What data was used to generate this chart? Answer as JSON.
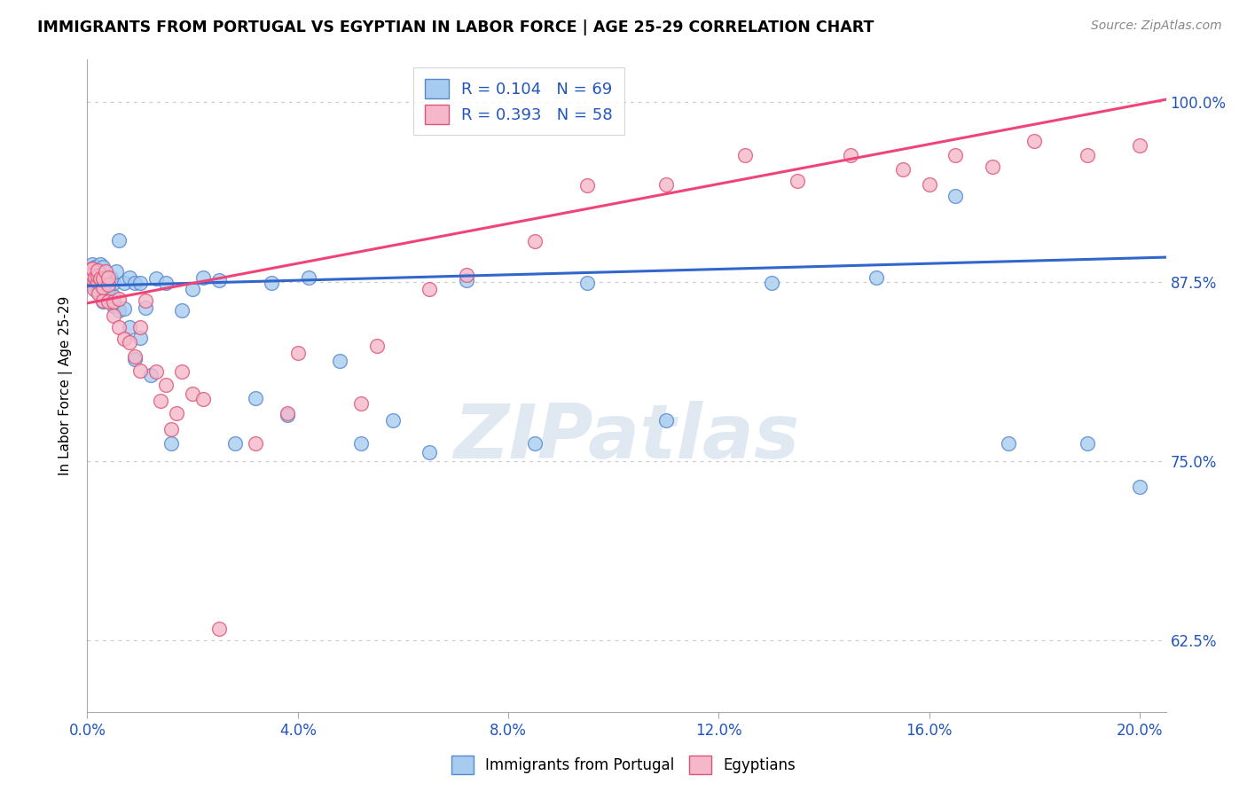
{
  "title": "IMMIGRANTS FROM PORTUGAL VS EGYPTIAN IN LABOR FORCE | AGE 25-29 CORRELATION CHART",
  "source": "Source: ZipAtlas.com",
  "ylabel": "In Labor Force | Age 25-29",
  "blue_R": 0.104,
  "blue_N": 69,
  "pink_R": 0.393,
  "pink_N": 58,
  "blue_color": "#A8CCF0",
  "pink_color": "#F5B8CA",
  "blue_edge": "#5588CC",
  "pink_edge": "#DD5577",
  "blue_line": "#3366CC",
  "pink_line": "#EE4477",
  "blue_label": "Immigrants from Portugal",
  "pink_label": "Egyptians",
  "xlim": [
    0.0,
    0.205
  ],
  "ylim": [
    0.575,
    1.03
  ],
  "xticks": [
    0.0,
    0.04,
    0.08,
    0.12,
    0.16,
    0.2
  ],
  "xticklabels": [
    "0.0%",
    "4.0%",
    "8.0%",
    "12.0%",
    "16.0%",
    "20.0%"
  ],
  "yticks": [
    0.625,
    0.75,
    0.875,
    1.0
  ],
  "yticklabels": [
    "62.5%",
    "75.0%",
    "87.5%",
    "100.0%"
  ],
  "blue_x": [
    0.0005,
    0.0005,
    0.0008,
    0.001,
    0.001,
    0.001,
    0.0012,
    0.0015,
    0.0015,
    0.002,
    0.002,
    0.002,
    0.002,
    0.0022,
    0.0025,
    0.003,
    0.003,
    0.003,
    0.003,
    0.003,
    0.0032,
    0.0035,
    0.004,
    0.004,
    0.004,
    0.0042,
    0.0045,
    0.005,
    0.005,
    0.005,
    0.0055,
    0.006,
    0.006,
    0.007,
    0.007,
    0.008,
    0.008,
    0.009,
    0.009,
    0.01,
    0.01,
    0.011,
    0.012,
    0.013,
    0.015,
    0.016,
    0.018,
    0.02,
    0.022,
    0.025,
    0.028,
    0.032,
    0.035,
    0.038,
    0.042,
    0.048,
    0.052,
    0.058,
    0.065,
    0.072,
    0.085,
    0.095,
    0.11,
    0.13,
    0.15,
    0.165,
    0.175,
    0.19,
    0.2
  ],
  "blue_y": [
    0.875,
    0.881,
    0.884,
    0.876,
    0.882,
    0.887,
    0.872,
    0.879,
    0.885,
    0.868,
    0.875,
    0.879,
    0.883,
    0.871,
    0.887,
    0.861,
    0.87,
    0.876,
    0.88,
    0.885,
    0.87,
    0.876,
    0.862,
    0.87,
    0.878,
    0.874,
    0.878,
    0.858,
    0.865,
    0.874,
    0.882,
    0.855,
    0.904,
    0.856,
    0.874,
    0.843,
    0.878,
    0.821,
    0.874,
    0.836,
    0.874,
    0.857,
    0.81,
    0.877,
    0.874,
    0.762,
    0.855,
    0.87,
    0.878,
    0.876,
    0.762,
    0.794,
    0.874,
    0.782,
    0.878,
    0.82,
    0.762,
    0.778,
    0.756,
    0.876,
    0.762,
    0.874,
    0.778,
    0.874,
    0.878,
    0.935,
    0.762,
    0.762,
    0.732
  ],
  "pink_x": [
    0.0005,
    0.0008,
    0.001,
    0.001,
    0.001,
    0.0012,
    0.0015,
    0.002,
    0.002,
    0.002,
    0.0022,
    0.0025,
    0.003,
    0.003,
    0.003,
    0.0035,
    0.004,
    0.004,
    0.004,
    0.005,
    0.005,
    0.006,
    0.006,
    0.007,
    0.008,
    0.009,
    0.01,
    0.01,
    0.011,
    0.013,
    0.014,
    0.015,
    0.016,
    0.017,
    0.018,
    0.02,
    0.022,
    0.025,
    0.032,
    0.038,
    0.04,
    0.052,
    0.055,
    0.065,
    0.072,
    0.085,
    0.095,
    0.11,
    0.125,
    0.135,
    0.145,
    0.155,
    0.16,
    0.165,
    0.172,
    0.18,
    0.19,
    0.2
  ],
  "pink_y": [
    0.88,
    0.884,
    0.877,
    0.88,
    0.884,
    0.87,
    0.878,
    0.875,
    0.879,
    0.883,
    0.867,
    0.877,
    0.862,
    0.871,
    0.877,
    0.882,
    0.861,
    0.873,
    0.878,
    0.851,
    0.861,
    0.843,
    0.863,
    0.835,
    0.833,
    0.823,
    0.813,
    0.843,
    0.862,
    0.812,
    0.792,
    0.803,
    0.772,
    0.783,
    0.812,
    0.797,
    0.793,
    0.633,
    0.762,
    0.783,
    0.825,
    0.79,
    0.83,
    0.87,
    0.88,
    0.903,
    0.942,
    0.943,
    0.963,
    0.945,
    0.963,
    0.953,
    0.943,
    0.963,
    0.955,
    0.973,
    0.963,
    0.97
  ]
}
